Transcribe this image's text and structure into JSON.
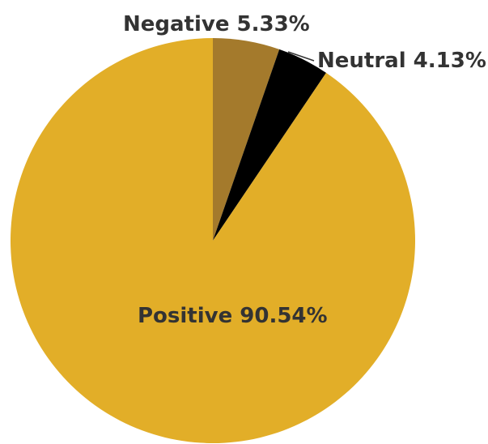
{
  "chart_data": {
    "type": "pie",
    "title": "",
    "slices": [
      {
        "label": "Negative 5.33%",
        "category": "Negative",
        "value": 5.33,
        "color": "#a47a2c"
      },
      {
        "label": "Neutral 4.13%",
        "category": "Neutral",
        "value": 4.13,
        "color": "#000000"
      },
      {
        "label": "Positive 90.54%",
        "category": "Positive",
        "value": 90.54,
        "color": "#e2ae28"
      }
    ],
    "start_angle": "12 o'clock",
    "direction": "clockwise",
    "legend": "none"
  }
}
